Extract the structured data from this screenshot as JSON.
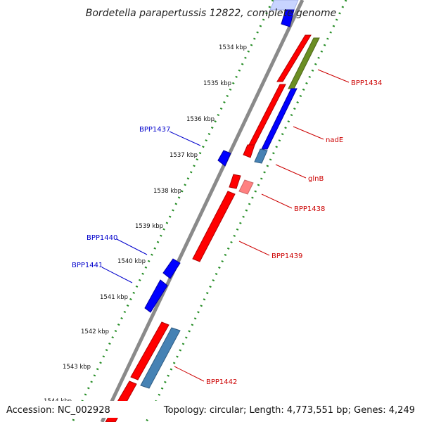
{
  "title": "Bordetella parapertussis 12822, complete genome",
  "footer": {
    "accession": "Accession: NC_002928",
    "topology": "Topology: circular; Length: 4,773,551 bp; Genes: 4,249"
  },
  "scale_labels": [
    "1534 kbp",
    "1535 kbp",
    "1536 kbp",
    "1537 kbp",
    "1538 kbp",
    "1539 kbp",
    "1540 kbp",
    "1541 kbp",
    "1542 kbp",
    "1543 kbp",
    "1544 kbp"
  ],
  "gene_labels": [
    {
      "text": "BPP1434",
      "color": "#cc0000"
    },
    {
      "text": "nadE",
      "color": "#cc0000"
    },
    {
      "text": "glnB",
      "color": "#cc0000"
    },
    {
      "text": "BPP1438",
      "color": "#cc0000"
    },
    {
      "text": "BPP1439",
      "color": "#cc0000"
    },
    {
      "text": "BPP1442",
      "color": "#cc0000"
    },
    {
      "text": "BPP1437",
      "color": "#0000cc"
    },
    {
      "text": "BPP1440",
      "color": "#0000cc"
    },
    {
      "text": "BPP1441",
      "color": "#0000cc"
    }
  ],
  "colors": {
    "forward_gene": "#ff0000",
    "reverse_gene": "#0000ff",
    "pseudo_light": "#ff8080",
    "steel": "#4682b4",
    "olive": "#6b8e23",
    "backbone": "#8a8a8a",
    "ticks": "#228b22"
  }
}
